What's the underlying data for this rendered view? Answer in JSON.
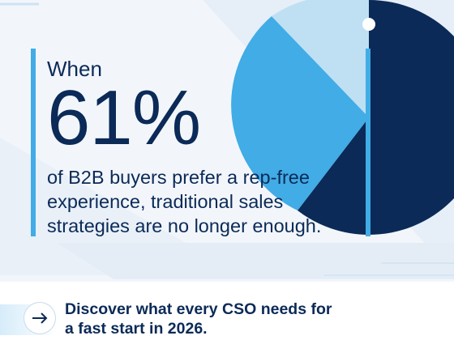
{
  "headline": {
    "lead": "When",
    "stat": "61%",
    "body": "of B2B buyers prefer a rep-free experience, traditional sales strategies are no longer enough."
  },
  "cta": {
    "text": "Discover what every CSO needs for a fast start in 2026.",
    "icon": "arrow-right-icon"
  },
  "colors": {
    "navy": "#0b2a57",
    "accent": "#41ace6",
    "background": "#f2f6fb"
  }
}
